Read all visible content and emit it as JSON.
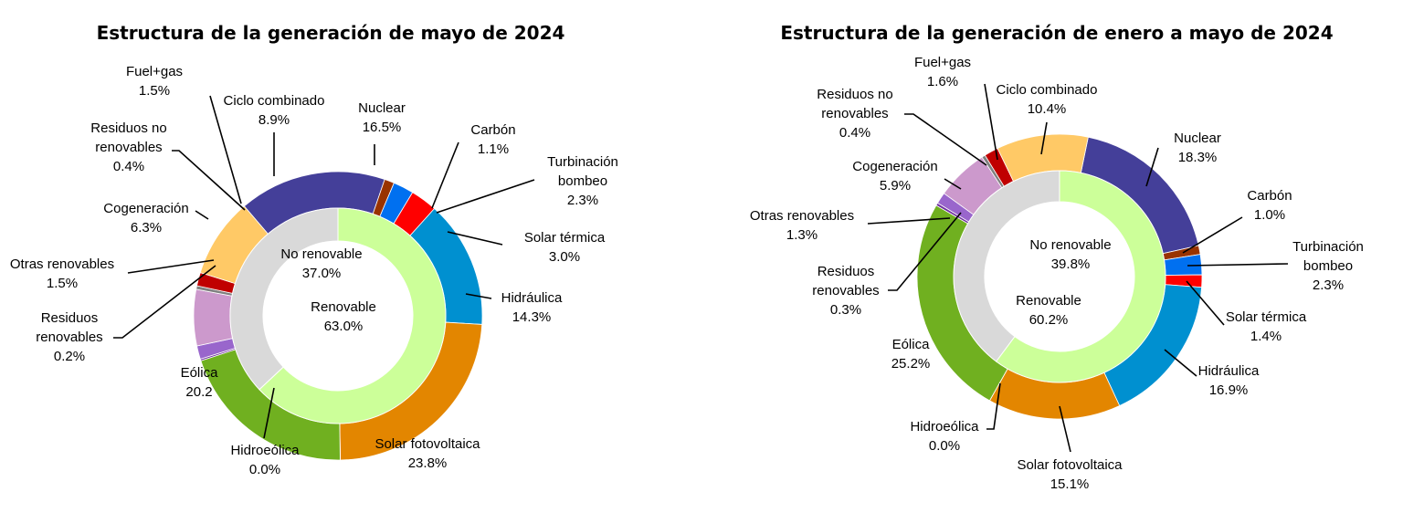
{
  "colors": {
    "Fuel+gas": "#c00000",
    "Ciclo combinado": "#ffc966",
    "Nuclear": "#443f99",
    "Carbón": "#993300",
    "Turbinación bombeo": "#0070f0",
    "Solar térmica": "#ff0000",
    "Hidráulica": "#0090d0",
    "Solar fotovoltaica": "#e38600",
    "Hidroeólica": "#a0c8ff",
    "Eólica": "#70b020",
    "Residuos renovables": "#7030a0",
    "Otras renovables": "#9966cc",
    "Cogeneración": "#cc99cc",
    "Residuos no renovables": "#808080",
    "No renovable": "#d9d9d9",
    "Renovable": "#ccff99"
  },
  "chart_data": [
    {
      "type": "pie",
      "title": "Estructura de la generación de mayo de 2024",
      "outer": [
        {
          "name": "Nuclear",
          "value": 16.5,
          "label": [
            "Nuclear",
            "16.5%"
          ]
        },
        {
          "name": "Carbón",
          "value": 1.1,
          "label": [
            "Carbón",
            "1.1%"
          ]
        },
        {
          "name": "Turbinación bombeo",
          "value": 2.3,
          "label": [
            "Turbinación",
            "bombeo",
            "2.3%"
          ]
        },
        {
          "name": "Solar térmica",
          "value": 3.0,
          "label": [
            "Solar térmica",
            "3.0%"
          ]
        },
        {
          "name": "Hidráulica",
          "value": 14.3,
          "label": [
            "Hidráulica",
            "14.3%"
          ]
        },
        {
          "name": "Solar fotovoltaica",
          "value": 23.8,
          "label": [
            "Solar fotovoltaica",
            "23.8%"
          ]
        },
        {
          "name": "Hidroeólica",
          "value": 0.0,
          "label": [
            "Hidroeólica",
            "0.0%"
          ]
        },
        {
          "name": "Eólica",
          "value": 20.2,
          "label": [
            "Eólica",
            "20.2"
          ]
        },
        {
          "name": "Residuos renovables",
          "value": 0.2,
          "label": [
            "Residuos",
            "renovables",
            "0.2%"
          ]
        },
        {
          "name": "Otras renovables",
          "value": 1.5,
          "label": [
            "Otras renovables",
            "1.5%"
          ]
        },
        {
          "name": "Cogeneración",
          "value": 6.3,
          "label": [
            "Cogeneración",
            "6.3%"
          ]
        },
        {
          "name": "Residuos no renovables",
          "value": 0.4,
          "label": [
            "Residuos no",
            "renovables",
            "0.4%"
          ]
        },
        {
          "name": "Fuel+gas",
          "value": 1.5,
          "label": [
            "Fuel+gas",
            "1.5%"
          ]
        },
        {
          "name": "Ciclo combinado",
          "value": 8.9,
          "label": [
            "Ciclo combinado",
            "8.9%"
          ]
        }
      ],
      "inner": [
        {
          "name": "No renovable",
          "value": 37.0,
          "label": [
            "No renovable",
            "37.0%"
          ]
        },
        {
          "name": "Renovable",
          "value": 63.0,
          "label": [
            "Renovable",
            "63.0%"
          ]
        }
      ]
    },
    {
      "type": "pie",
      "title": "Estructura de la generación de enero a mayo de 2024",
      "outer": [
        {
          "name": "Nuclear",
          "value": 18.3,
          "label": [
            "Nuclear",
            "18.3%"
          ]
        },
        {
          "name": "Carbón",
          "value": 1.0,
          "label": [
            "Carbón",
            "1.0%"
          ]
        },
        {
          "name": "Turbinación bombeo",
          "value": 2.3,
          "label": [
            "Turbinación",
            "bombeo",
            "2.3%"
          ]
        },
        {
          "name": "Solar térmica",
          "value": 1.4,
          "label": [
            "Solar térmica",
            "1.4%"
          ]
        },
        {
          "name": "Hidráulica",
          "value": 16.9,
          "label": [
            "Hidráulica",
            "16.9%"
          ]
        },
        {
          "name": "Solar fotovoltaica",
          "value": 15.1,
          "label": [
            "Solar fotovoltaica",
            "15.1%"
          ]
        },
        {
          "name": "Hidroeólica",
          "value": 0.0,
          "label": [
            "Hidroeólica",
            "0.0%"
          ]
        },
        {
          "name": "Eólica",
          "value": 25.2,
          "label": [
            "Eólica",
            "25.2%"
          ]
        },
        {
          "name": "Residuos renovables",
          "value": 0.3,
          "label": [
            "Residuos",
            "renovables",
            "0.3%"
          ]
        },
        {
          "name": "Otras renovables",
          "value": 1.3,
          "label": [
            "Otras renovables",
            "1.3%"
          ]
        },
        {
          "name": "Cogeneración",
          "value": 5.9,
          "label": [
            "Cogeneración",
            "5.9%"
          ]
        },
        {
          "name": "Residuos no renovables",
          "value": 0.4,
          "label": [
            "Residuos no",
            "renovables",
            "0.4%"
          ]
        },
        {
          "name": "Fuel+gas",
          "value": 1.6,
          "label": [
            "Fuel+gas",
            "1.6%"
          ]
        },
        {
          "name": "Ciclo combinado",
          "value": 10.4,
          "label": [
            "Ciclo combinado",
            "10.4%"
          ]
        }
      ],
      "inner": [
        {
          "name": "No renovable",
          "value": 39.8,
          "label": [
            "No renovable",
            "39.8%"
          ]
        },
        {
          "name": "Renovable",
          "value": 60.2,
          "label": [
            "Renovable",
            "60.2%"
          ]
        }
      ]
    }
  ]
}
